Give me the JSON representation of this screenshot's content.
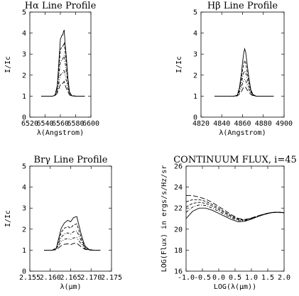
{
  "figure": {
    "background": "#ffffff",
    "line_color": "#000000"
  },
  "chart_data": [
    {
      "type": "line",
      "title": "Hα Line Profile",
      "xlabel": "λ(Angstrom)",
      "ylabel": "I/Ic",
      "xlim": [
        6520,
        6600
      ],
      "ylim": [
        0,
        5
      ],
      "xticks": [
        6520,
        6540,
        6560,
        6580,
        6600
      ],
      "yticks": [
        0,
        1,
        2,
        3,
        4,
        5
      ],
      "grid": false,
      "line_styles": [
        "solid",
        "dashed",
        "dash-dot",
        "dash-dot-dot",
        "long-dash"
      ],
      "x": [
        6535,
        6545,
        6550,
        6553,
        6556,
        6558,
        6560,
        6562,
        6563,
        6564,
        6565,
        6566,
        6568,
        6570,
        6572,
        6575,
        6580,
        6592
      ],
      "series": [
        {
          "values": [
            1.0,
            1.0,
            1.0,
            1.05,
            1.5,
            2.6,
            3.7,
            3.9,
            3.9,
            4.05,
            4.15,
            3.6,
            2.8,
            1.8,
            1.2,
            1.02,
            1.0,
            1.0
          ]
        },
        {
          "values": [
            1.0,
            1.0,
            1.0,
            1.05,
            1.45,
            2.3,
            3.2,
            3.35,
            3.35,
            3.45,
            3.55,
            3.2,
            2.5,
            1.7,
            1.15,
            1.02,
            1.0,
            1.0
          ]
        },
        {
          "values": [
            1.0,
            1.0,
            1.0,
            1.04,
            1.35,
            1.95,
            2.6,
            2.75,
            2.75,
            2.85,
            2.95,
            2.65,
            2.1,
            1.55,
            1.12,
            1.02,
            1.0,
            1.0
          ]
        },
        {
          "values": [
            1.0,
            1.0,
            1.0,
            1.03,
            1.25,
            1.6,
            2.0,
            2.1,
            2.1,
            2.2,
            2.25,
            2.05,
            1.7,
            1.35,
            1.08,
            1.01,
            1.0,
            1.0
          ]
        },
        {
          "values": [
            1.0,
            1.0,
            1.0,
            1.02,
            1.15,
            1.35,
            1.55,
            1.6,
            1.6,
            1.65,
            1.7,
            1.55,
            1.35,
            1.2,
            1.05,
            1.01,
            1.0,
            1.0
          ]
        }
      ]
    },
    {
      "type": "line",
      "title": "Hβ Line Profile",
      "xlabel": "λ(Angstrom)",
      "ylabel": "I/Ic",
      "xlim": [
        4820,
        4900
      ],
      "ylim": [
        0,
        5
      ],
      "xticks": [
        4820,
        4840,
        4860,
        4880,
        4900
      ],
      "yticks": [
        0,
        1,
        2,
        3,
        4,
        5
      ],
      "grid": false,
      "line_styles": [
        "solid",
        "dashed",
        "dash-dot",
        "dash-dot-dot",
        "long-dash"
      ],
      "x": [
        4833,
        4845,
        4852,
        4855,
        4857,
        4859,
        4860,
        4861,
        4862,
        4863,
        4864,
        4866,
        4868,
        4870,
        4873,
        4878,
        4890
      ],
      "series": [
        {
          "values": [
            1.0,
            1.0,
            1.0,
            1.05,
            1.4,
            2.1,
            2.6,
            3.0,
            3.25,
            3.1,
            2.7,
            1.9,
            1.3,
            1.08,
            1.0,
            1.0,
            1.0
          ]
        },
        {
          "values": [
            1.0,
            1.0,
            1.0,
            1.04,
            1.35,
            1.85,
            2.25,
            2.5,
            2.7,
            2.6,
            2.3,
            1.7,
            1.25,
            1.06,
            1.0,
            1.0,
            1.0
          ]
        },
        {
          "values": [
            1.0,
            1.0,
            1.0,
            1.03,
            1.28,
            1.6,
            1.9,
            2.1,
            2.2,
            2.15,
            1.95,
            1.5,
            1.2,
            1.05,
            1.0,
            1.0,
            1.0
          ]
        },
        {
          "values": [
            1.0,
            1.0,
            1.0,
            1.02,
            1.2,
            1.4,
            1.6,
            1.72,
            1.8,
            1.76,
            1.6,
            1.35,
            1.15,
            1.04,
            1.0,
            1.0,
            1.0
          ]
        },
        {
          "values": [
            1.0,
            1.0,
            1.0,
            1.01,
            1.1,
            1.22,
            1.33,
            1.4,
            1.45,
            1.42,
            1.33,
            1.2,
            1.08,
            1.02,
            1.0,
            1.0,
            1.0
          ]
        }
      ]
    },
    {
      "type": "line",
      "title": "Brγ Line Profile",
      "xlabel": "λ(μm)",
      "ylabel": "I/Ic",
      "xlim": [
        2.155,
        2.175
      ],
      "ylim": [
        0,
        5
      ],
      "xticks": [
        2.155,
        2.16,
        2.165,
        2.17,
        2.175
      ],
      "xtick_labels": [
        "2.155",
        "2.160",
        "2.165",
        "2.170",
        "2.175"
      ],
      "yticks": [
        0,
        1,
        2,
        3,
        4,
        5
      ],
      "grid": false,
      "line_styles": [
        "solid",
        "dashed",
        "dash-dot",
        "dash-dot-dot",
        "long-dash"
      ],
      "x": [
        2.1585,
        2.1605,
        2.1615,
        2.162,
        2.1627,
        2.1635,
        2.1643,
        2.165,
        2.1657,
        2.1665,
        2.167,
        2.1678,
        2.1685,
        2.1695,
        2.1705,
        2.1723
      ],
      "series": [
        {
          "values": [
            1.0,
            1.0,
            1.1,
            1.5,
            2.05,
            2.3,
            2.42,
            2.35,
            2.55,
            2.6,
            2.2,
            1.6,
            1.2,
            1.03,
            1.0,
            1.0
          ]
        },
        {
          "values": [
            1.0,
            1.0,
            1.08,
            1.4,
            1.85,
            2.05,
            2.12,
            2.05,
            2.2,
            2.25,
            1.95,
            1.45,
            1.15,
            1.02,
            1.0,
            1.0
          ]
        },
        {
          "values": [
            1.0,
            1.0,
            1.06,
            1.3,
            1.62,
            1.78,
            1.82,
            1.76,
            1.88,
            1.9,
            1.7,
            1.35,
            1.1,
            1.02,
            1.0,
            1.0
          ]
        },
        {
          "values": [
            1.0,
            1.0,
            1.04,
            1.2,
            1.42,
            1.52,
            1.55,
            1.5,
            1.58,
            1.6,
            1.45,
            1.25,
            1.07,
            1.01,
            1.0,
            1.0
          ]
        },
        {
          "values": [
            1.0,
            1.0,
            1.02,
            1.1,
            1.22,
            1.28,
            1.3,
            1.26,
            1.32,
            1.33,
            1.25,
            1.12,
            1.04,
            1.0,
            1.0,
            1.0
          ]
        }
      ]
    },
    {
      "type": "line",
      "title": "CONTINUUM FLUX, i=45",
      "xlabel": "LOG(λ(μm))",
      "ylabel": "LOG(Flux) in ergs/s/Hz/sr",
      "xlim": [
        -1.0,
        2.0
      ],
      "ylim": [
        16,
        26
      ],
      "xticks": [
        -1.0,
        -0.5,
        0.0,
        0.5,
        1.0,
        1.5,
        2.0
      ],
      "xtick_labels": [
        "-1.0",
        "-0.5",
        "0.0",
        "0.5",
        "1.0",
        "1.5",
        "2.0"
      ],
      "yticks": [
        16,
        18,
        20,
        22,
        24,
        26
      ],
      "grid": false,
      "line_styles": [
        "solid",
        "dash-dot",
        "dashed",
        "dashed",
        "long-dash"
      ],
      "x": [
        -1.0,
        -0.8,
        -0.6,
        -0.4,
        -0.2,
        0.0,
        0.2,
        0.4,
        0.6,
        0.8,
        1.0,
        1.2,
        1.4,
        1.6,
        1.8,
        2.0
      ],
      "series": [
        {
          "values": [
            21.0,
            21.7,
            22.0,
            22.0,
            21.8,
            21.5,
            21.2,
            20.9,
            20.7,
            20.75,
            20.95,
            21.2,
            21.4,
            21.55,
            21.6,
            21.55
          ]
        },
        {
          "values": [
            21.6,
            22.1,
            22.3,
            22.25,
            22.0,
            21.7,
            21.35,
            21.05,
            20.8,
            20.8,
            21.0,
            21.22,
            21.42,
            21.56,
            21.61,
            21.56
          ]
        },
        {
          "values": [
            22.1,
            22.45,
            22.55,
            22.45,
            22.2,
            21.85,
            21.5,
            21.15,
            20.9,
            20.85,
            21.02,
            21.24,
            21.43,
            21.57,
            21.61,
            21.56
          ]
        },
        {
          "values": [
            22.6,
            22.8,
            22.8,
            22.65,
            22.35,
            22.0,
            21.6,
            21.25,
            20.95,
            20.88,
            21.04,
            21.25,
            21.44,
            21.57,
            21.62,
            21.57
          ]
        },
        {
          "values": [
            23.2,
            23.2,
            23.05,
            22.85,
            22.55,
            22.15,
            21.75,
            21.35,
            21.02,
            20.92,
            21.06,
            21.27,
            21.45,
            21.58,
            21.62,
            21.57
          ]
        }
      ]
    }
  ]
}
